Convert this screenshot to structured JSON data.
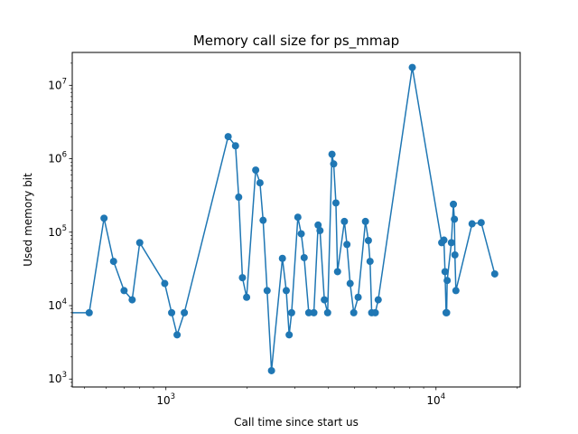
{
  "chart_data": {
    "type": "line",
    "title": "Memory call size for ps_mmap",
    "xlabel": "Call time since start us",
    "ylabel": "Used memory bit",
    "xscale": "log",
    "yscale": "log",
    "xlim": [
      450,
      20500
    ],
    "ylim": [
      780,
      28000000
    ],
    "grid": false,
    "marker": "circle",
    "line_color": "#1f77b4",
    "x_ticks": [
      {
        "base": "10",
        "exp": "3",
        "value": 1000
      },
      {
        "base": "10",
        "exp": "4",
        "value": 10000
      }
    ],
    "y_ticks": [
      {
        "base": "10",
        "exp": "3",
        "value": 1000
      },
      {
        "base": "10",
        "exp": "4",
        "value": 10000
      },
      {
        "base": "10",
        "exp": "5",
        "value": 100000
      },
      {
        "base": "10",
        "exp": "6",
        "value": 1000000
      },
      {
        "base": "10",
        "exp": "7",
        "value": 10000000
      }
    ],
    "series": [
      {
        "points": [
          [
            340,
            8000
          ],
          [
            520,
            8000
          ],
          [
            590,
            155000
          ],
          [
            640,
            40000
          ],
          [
            700,
            16000
          ],
          [
            750,
            12000
          ],
          [
            800,
            72000
          ],
          [
            990,
            20000
          ],
          [
            1050,
            8000
          ],
          [
            1100,
            4000
          ],
          [
            1170,
            8000
          ],
          [
            1700,
            2000000
          ],
          [
            1810,
            1500000
          ],
          [
            1860,
            300000
          ],
          [
            1920,
            24000
          ],
          [
            1990,
            13000
          ],
          [
            2150,
            700000
          ],
          [
            2230,
            470000
          ],
          [
            2290,
            145000
          ],
          [
            2370,
            16000
          ],
          [
            2460,
            1300
          ],
          [
            2700,
            44000
          ],
          [
            2790,
            16000
          ],
          [
            2860,
            4000
          ],
          [
            2920,
            8000
          ],
          [
            3080,
            160000
          ],
          [
            3170,
            95000
          ],
          [
            3250,
            45000
          ],
          [
            3380,
            8000
          ],
          [
            3530,
            8000
          ],
          [
            3660,
            125000
          ],
          [
            3720,
            105000
          ],
          [
            3860,
            12000
          ],
          [
            3970,
            8000
          ],
          [
            4120,
            1150000
          ],
          [
            4180,
            850000
          ],
          [
            4260,
            250000
          ],
          [
            4320,
            29000
          ],
          [
            4580,
            140000
          ],
          [
            4680,
            68000
          ],
          [
            4810,
            20000
          ],
          [
            4960,
            8000
          ],
          [
            5150,
            13000
          ],
          [
            5480,
            140000
          ],
          [
            5620,
            77000
          ],
          [
            5700,
            40000
          ],
          [
            5780,
            8000
          ],
          [
            5960,
            8000
          ],
          [
            6110,
            12000
          ],
          [
            8170,
            17500000
          ],
          [
            10500,
            72000
          ],
          [
            10700,
            78000
          ],
          [
            10800,
            29000
          ],
          [
            10900,
            8000
          ],
          [
            10950,
            8000
          ],
          [
            11000,
            22000
          ],
          [
            11400,
            72000
          ],
          [
            11600,
            240000
          ],
          [
            11700,
            150000
          ],
          [
            11750,
            49000
          ],
          [
            11850,
            16000
          ],
          [
            13600,
            130000
          ],
          [
            14700,
            135000
          ],
          [
            16500,
            27000
          ]
        ]
      }
    ]
  }
}
